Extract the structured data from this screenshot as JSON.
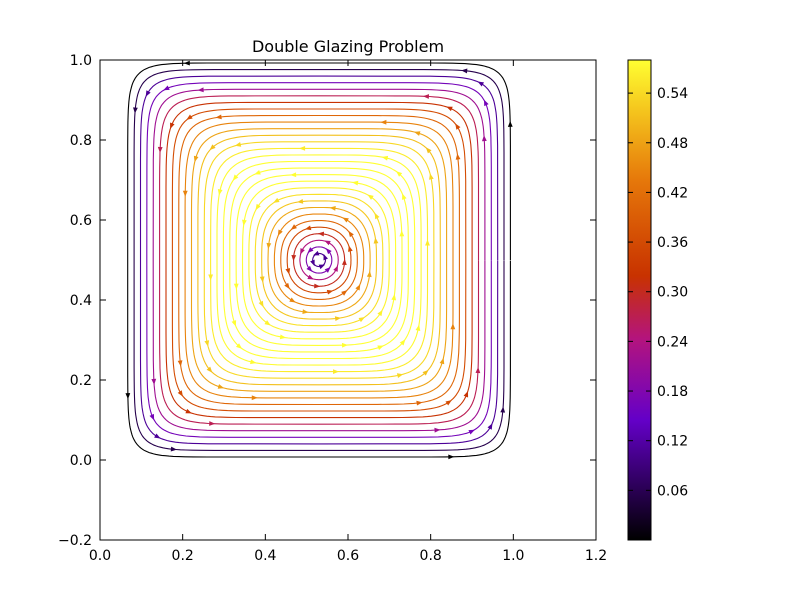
{
  "chart_data": {
    "type": "streamplot",
    "title": "Double Glazing Problem",
    "xlabel": "",
    "ylabel": "",
    "xlim": [
      0.0,
      1.2
    ],
    "ylim": [
      -0.2,
      1.0
    ],
    "x_ticks": [
      "0.0",
      "0.2",
      "0.4",
      "0.6",
      "0.8",
      "1.0",
      "1.2"
    ],
    "x_tick_values": [
      0.0,
      0.2,
      0.4,
      0.6,
      0.8,
      1.0,
      1.2
    ],
    "y_ticks": [
      "−0.2",
      "0.0",
      "0.2",
      "0.4",
      "0.6",
      "0.8",
      "1.0"
    ],
    "y_tick_values": [
      -0.2,
      0.0,
      0.2,
      0.4,
      0.6,
      0.8,
      1.0
    ],
    "grid": false,
    "colormap": "gnuplot",
    "vortex_center": [
      0.53,
      0.5
    ],
    "domain": {
      "x": [
        0.0,
        1.0
      ],
      "y": [
        0.0,
        1.0
      ]
    },
    "rotation": "counter-clockwise",
    "colorbar": {
      "min": 0.0,
      "max": 0.58,
      "ticks": [
        "0.06",
        "0.12",
        "0.18",
        "0.24",
        "0.30",
        "0.36",
        "0.42",
        "0.48",
        "0.54"
      ],
      "tick_values": [
        0.06,
        0.12,
        0.18,
        0.24,
        0.3,
        0.36,
        0.42,
        0.48,
        0.54
      ]
    }
  }
}
